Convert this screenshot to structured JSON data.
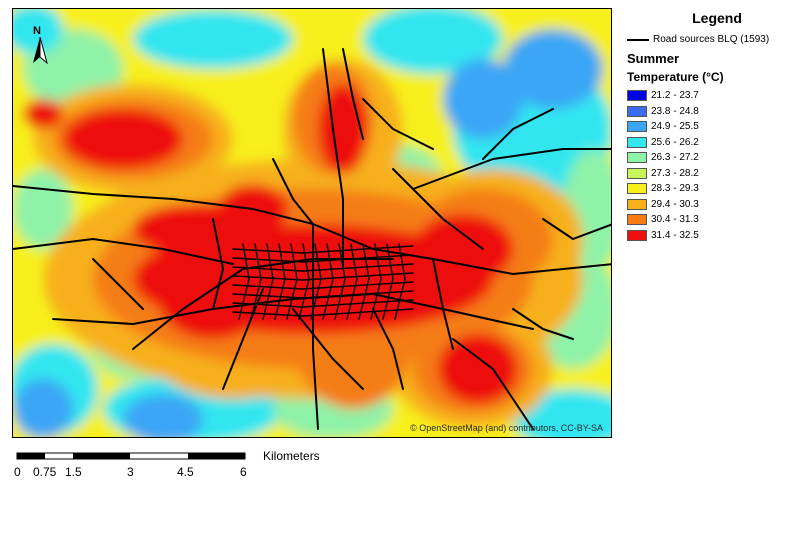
{
  "legend": {
    "title": "Legend",
    "roads_label": "Road sources BLQ (1593)",
    "season": "Summer",
    "temperature_title": "Temperature (°C)",
    "classes": [
      {
        "label": "21.2 - 23.7",
        "color": "#0000e6"
      },
      {
        "label": "23.8 - 24.8",
        "color": "#3a6cf0"
      },
      {
        "label": "24.9 - 25.5",
        "color": "#3ba6f5"
      },
      {
        "label": "25.6 - 26.2",
        "color": "#33e6f0"
      },
      {
        "label": "26.3 - 27.2",
        "color": "#8ef2a8"
      },
      {
        "label": "27.3 - 28.2",
        "color": "#c8f55a"
      },
      {
        "label": "28.3 - 29.3",
        "color": "#f7f01a"
      },
      {
        "label": "29.4 - 30.3",
        "color": "#f7b01a"
      },
      {
        "label": "30.4 - 31.3",
        "color": "#f57d12"
      },
      {
        "label": "31.4 - 32.5",
        "color": "#ee1010"
      }
    ]
  },
  "map": {
    "attribution": "© OpenStreetMap (and) contributors, CC-BY-SA",
    "north_label": "N"
  },
  "scale": {
    "unit": "Kilometers",
    "ticks": [
      "0",
      "0.75",
      "1.5",
      "3",
      "4.5",
      "6"
    ]
  }
}
